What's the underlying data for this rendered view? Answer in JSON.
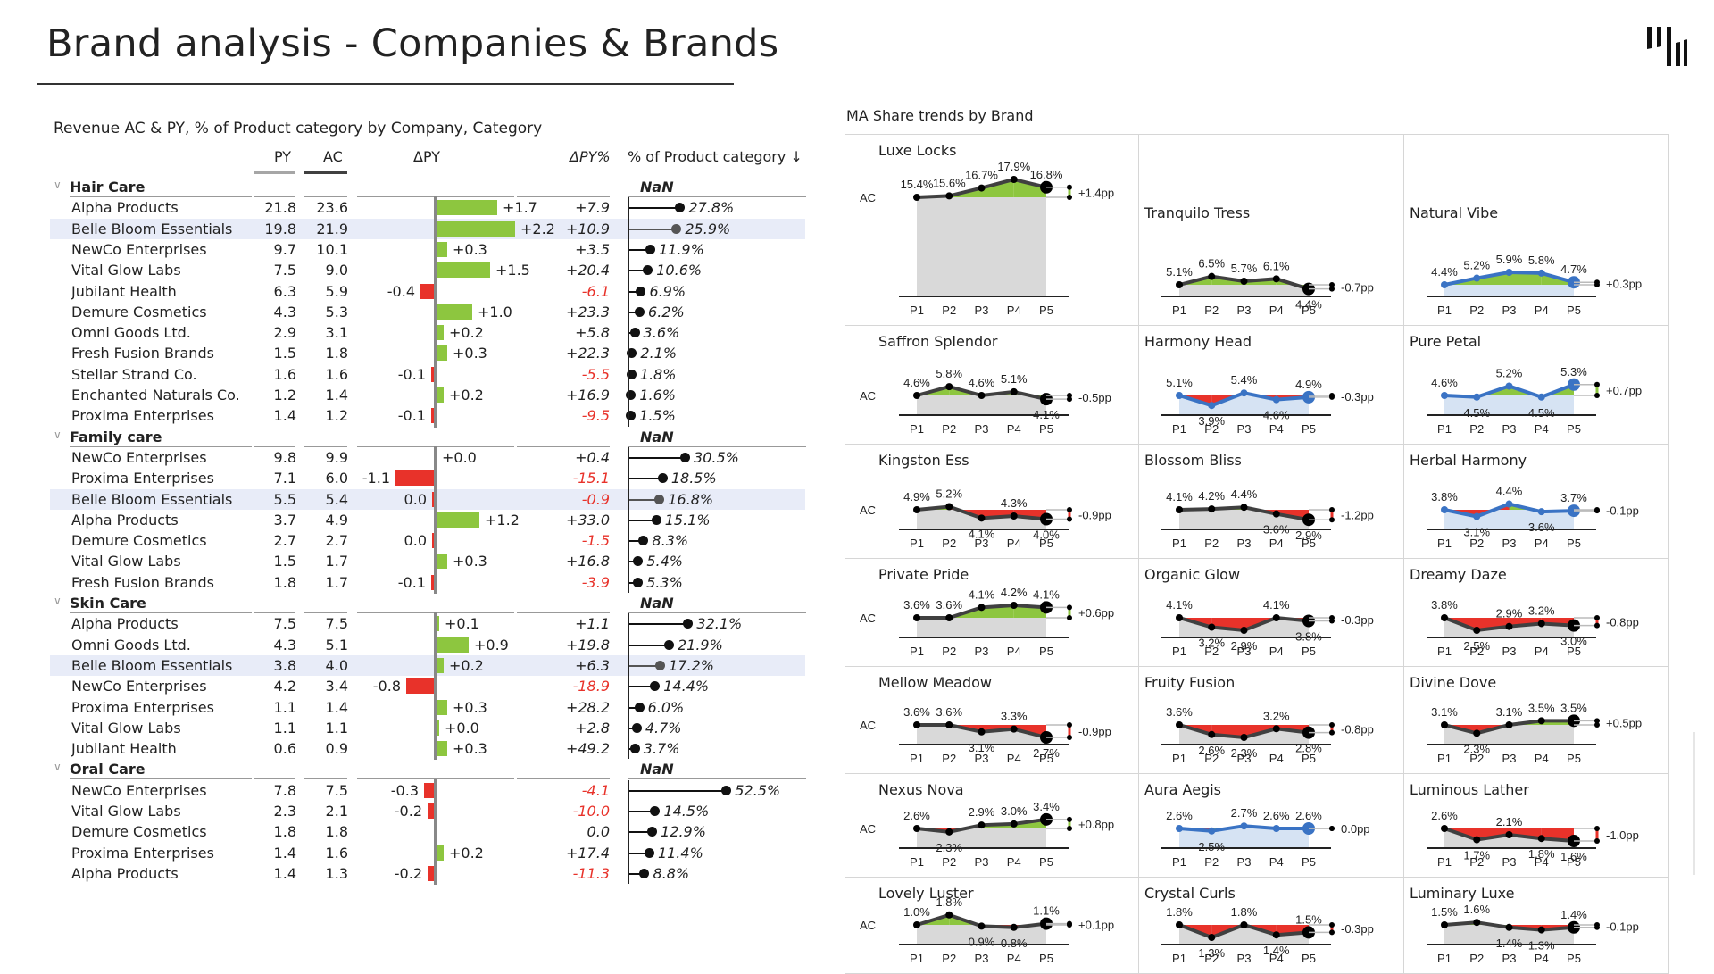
{
  "page": {
    "title": "Brand analysis - Companies & Brands",
    "logo_icon": "bars-logo-icon"
  },
  "table": {
    "subtitle": "Revenue AC & PY, % of Product category by Company, Category",
    "headers": {
      "py": "PY",
      "ac": "AC",
      "dpy": "ΔPY",
      "dpy_pct": "ΔPY%",
      "share": "% of Product category ↓"
    },
    "colors": {
      "positive": "#8dc63f",
      "negative": "#e8322a",
      "py_bar": "#a6a6a6",
      "ac_bar": "#404040",
      "highlight": "#e8ecf8"
    },
    "groups": [
      {
        "name": "Hair Care",
        "share_total": "NaN",
        "rows": [
          {
            "company": "Alpha Products",
            "py": "21.8",
            "ac": "23.6",
            "dpy": 1.7,
            "dpy_label": "+1.7",
            "dpy_pct": "+7.9",
            "share": 27.8,
            "share_label": "27.8%"
          },
          {
            "company": "Belle Bloom Essentials",
            "py": "19.8",
            "ac": "21.9",
            "dpy": 2.2,
            "dpy_label": "+2.2",
            "dpy_pct": "+10.9",
            "share": 25.9,
            "share_label": "25.9%",
            "highlight": true
          },
          {
            "company": "NewCo Enterprises",
            "py": "9.7",
            "ac": "10.1",
            "dpy": 0.3,
            "dpy_label": "+0.3",
            "dpy_pct": "+3.5",
            "share": 11.9,
            "share_label": "11.9%"
          },
          {
            "company": "Vital Glow Labs",
            "py": "7.5",
            "ac": "9.0",
            "dpy": 1.5,
            "dpy_label": "+1.5",
            "dpy_pct": "+20.4",
            "share": 10.6,
            "share_label": "10.6%"
          },
          {
            "company": "Jubilant Health",
            "py": "6.3",
            "ac": "5.9",
            "dpy": -0.4,
            "dpy_label": "-0.4",
            "dpy_pct": "-6.1",
            "share": 6.9,
            "share_label": "6.9%"
          },
          {
            "company": "Demure Cosmetics",
            "py": "4.3",
            "ac": "5.3",
            "dpy": 1.0,
            "dpy_label": "+1.0",
            "dpy_pct": "+23.3",
            "share": 6.2,
            "share_label": "6.2%"
          },
          {
            "company": "Omni Goods Ltd.",
            "py": "2.9",
            "ac": "3.1",
            "dpy": 0.2,
            "dpy_label": "+0.2",
            "dpy_pct": "+5.8",
            "share": 3.6,
            "share_label": "3.6%"
          },
          {
            "company": "Fresh Fusion Brands",
            "py": "1.5",
            "ac": "1.8",
            "dpy": 0.3,
            "dpy_label": "+0.3",
            "dpy_pct": "+22.3",
            "share": 2.1,
            "share_label": "2.1%"
          },
          {
            "company": "Stellar Strand Co.",
            "py": "1.6",
            "ac": "1.6",
            "dpy": -0.1,
            "dpy_label": "-0.1",
            "dpy_pct": "-5.5",
            "share": 1.8,
            "share_label": "1.8%"
          },
          {
            "company": "Enchanted Naturals Co.",
            "py": "1.2",
            "ac": "1.4",
            "dpy": 0.2,
            "dpy_label": "+0.2",
            "dpy_pct": "+16.9",
            "share": 1.6,
            "share_label": "1.6%"
          },
          {
            "company": "Proxima Enterprises",
            "py": "1.4",
            "ac": "1.2",
            "dpy": -0.1,
            "dpy_label": "-0.1",
            "dpy_pct": "-9.5",
            "share": 1.5,
            "share_label": "1.5%"
          }
        ]
      },
      {
        "name": "Family care",
        "share_total": "NaN",
        "rows": [
          {
            "company": "NewCo Enterprises",
            "py": "9.8",
            "ac": "9.9",
            "dpy": 0.0,
            "dpy_label": "+0.0",
            "dpy_pct": "+0.4",
            "share": 30.5,
            "share_label": "30.5%"
          },
          {
            "company": "Proxima Enterprises",
            "py": "7.1",
            "ac": "6.0",
            "dpy": -1.1,
            "dpy_label": "-1.1",
            "dpy_pct": "-15.1",
            "share": 18.5,
            "share_label": "18.5%"
          },
          {
            "company": "Belle Bloom Essentials",
            "py": "5.5",
            "ac": "5.4",
            "dpy": -0.01,
            "dpy_label": "0.0",
            "dpy_pct": "-0.9",
            "share": 16.8,
            "share_label": "16.8%",
            "highlight": true
          },
          {
            "company": "Alpha Products",
            "py": "3.7",
            "ac": "4.9",
            "dpy": 1.2,
            "dpy_label": "+1.2",
            "dpy_pct": "+33.0",
            "share": 15.1,
            "share_label": "15.1%"
          },
          {
            "company": "Demure Cosmetics",
            "py": "2.7",
            "ac": "2.7",
            "dpy": -0.01,
            "dpy_label": "0.0",
            "dpy_pct": "-1.5",
            "share": 8.3,
            "share_label": "8.3%"
          },
          {
            "company": "Vital Glow Labs",
            "py": "1.5",
            "ac": "1.7",
            "dpy": 0.3,
            "dpy_label": "+0.3",
            "dpy_pct": "+16.8",
            "share": 5.4,
            "share_label": "5.4%"
          },
          {
            "company": "Fresh Fusion Brands",
            "py": "1.8",
            "ac": "1.7",
            "dpy": -0.1,
            "dpy_label": "-0.1",
            "dpy_pct": "-3.9",
            "share": 5.3,
            "share_label": "5.3%"
          }
        ]
      },
      {
        "name": "Skin Care",
        "share_total": "NaN",
        "rows": [
          {
            "company": "Alpha Products",
            "py": "7.5",
            "ac": "7.5",
            "dpy": 0.05,
            "dpy_label": "+0.1",
            "dpy_pct": "+1.1",
            "share": 32.1,
            "share_label": "32.1%"
          },
          {
            "company": "Omni Goods Ltd.",
            "py": "4.3",
            "ac": "5.1",
            "dpy": 0.9,
            "dpy_label": "+0.9",
            "dpy_pct": "+19.8",
            "share": 21.9,
            "share_label": "21.9%"
          },
          {
            "company": "Belle Bloom Essentials",
            "py": "3.8",
            "ac": "4.0",
            "dpy": 0.2,
            "dpy_label": "+0.2",
            "dpy_pct": "+6.3",
            "share": 17.2,
            "share_label": "17.2%",
            "highlight": true
          },
          {
            "company": "NewCo Enterprises",
            "py": "4.2",
            "ac": "3.4",
            "dpy": -0.8,
            "dpy_label": "-0.8",
            "dpy_pct": "-18.9",
            "share": 14.4,
            "share_label": "14.4%"
          },
          {
            "company": "Proxima Enterprises",
            "py": "1.1",
            "ac": "1.4",
            "dpy": 0.3,
            "dpy_label": "+0.3",
            "dpy_pct": "+28.2",
            "share": 6.0,
            "share_label": "6.0%"
          },
          {
            "company": "Vital Glow Labs",
            "py": "1.1",
            "ac": "1.1",
            "dpy": 0.02,
            "dpy_label": "+0.0",
            "dpy_pct": "+2.8",
            "share": 4.7,
            "share_label": "4.7%"
          },
          {
            "company": "Jubilant Health",
            "py": "0.6",
            "ac": "0.9",
            "dpy": 0.3,
            "dpy_label": "+0.3",
            "dpy_pct": "+49.2",
            "share": 3.7,
            "share_label": "3.7%"
          }
        ]
      },
      {
        "name": "Oral Care",
        "share_total": "NaN",
        "rows": [
          {
            "company": "NewCo Enterprises",
            "py": "7.8",
            "ac": "7.5",
            "dpy": -0.3,
            "dpy_label": "-0.3",
            "dpy_pct": "-4.1",
            "share": 52.5,
            "share_label": "52.5%"
          },
          {
            "company": "Vital Glow Labs",
            "py": "2.3",
            "ac": "2.1",
            "dpy": -0.2,
            "dpy_label": "-0.2",
            "dpy_pct": "-10.0",
            "share": 14.5,
            "share_label": "14.5%"
          },
          {
            "company": "Demure Cosmetics",
            "py": "1.8",
            "ac": "1.8",
            "dpy": 0.0,
            "dpy_label": "",
            "dpy_pct": "0.0",
            "share": 12.9,
            "share_label": "12.9%"
          },
          {
            "company": "Proxima Enterprises",
            "py": "1.4",
            "ac": "1.6",
            "dpy": 0.2,
            "dpy_label": "+0.2",
            "dpy_pct": "+17.4",
            "share": 11.4,
            "share_label": "11.4%"
          },
          {
            "company": "Alpha Products",
            "py": "1.4",
            "ac": "1.3",
            "dpy": -0.2,
            "dpy_label": "-0.2",
            "dpy_pct": "-11.3",
            "share": 8.8,
            "share_label": "8.8%"
          }
        ]
      }
    ]
  },
  "trends": {
    "title": "MA Share trends by Brand",
    "periods": [
      "P1",
      "P2",
      "P3",
      "P4",
      "P5"
    ],
    "ac_label": "AC",
    "colors": {
      "up": "#8dc63f",
      "down": "#e8322a",
      "line_dark": "#404040",
      "line_blue": "#3a73c4",
      "fill_grey": "#d9d9d9",
      "fill_blue": "#d6e3f3"
    },
    "brands": [
      {
        "name": "Luxe Locks",
        "values": [
          15.4,
          15.6,
          16.7,
          17.9,
          16.8
        ],
        "delta": "+1.4pp",
        "style": "dark",
        "ac": true
      },
      {
        "name": "Tranquilo Tress",
        "values": [
          5.1,
          6.5,
          5.7,
          6.1,
          4.4
        ],
        "delta": "-0.7pp",
        "style": "dark"
      },
      {
        "name": "Natural Vibe",
        "values": [
          4.4,
          5.2,
          5.9,
          5.8,
          4.7
        ],
        "delta": "+0.3pp",
        "style": "blue"
      },
      {
        "name": "Saffron Splendor",
        "values": [
          4.6,
          5.8,
          4.6,
          5.1,
          4.1
        ],
        "delta": "-0.5pp",
        "style": "dark",
        "ac": true
      },
      {
        "name": "Harmony Head",
        "values": [
          5.1,
          3.9,
          5.4,
          4.6,
          4.9
        ],
        "delta": "-0.3pp",
        "style": "blue"
      },
      {
        "name": "Pure Petal",
        "values": [
          4.6,
          4.5,
          5.2,
          4.5,
          5.3
        ],
        "delta": "+0.7pp",
        "style": "blue"
      },
      {
        "name": "Kingston Ess",
        "values": [
          4.9,
          5.2,
          4.1,
          4.3,
          4.0
        ],
        "delta": "-0.9pp",
        "style": "dark",
        "ac": true
      },
      {
        "name": "Blossom Bliss",
        "values": [
          4.1,
          4.2,
          4.4,
          3.6,
          2.9
        ],
        "delta": "-1.2pp",
        "style": "dark"
      },
      {
        "name": "Herbal Harmony",
        "values": [
          3.8,
          3.1,
          4.4,
          3.6,
          3.7
        ],
        "delta": "-0.1pp",
        "style": "blue"
      },
      {
        "name": "Private Pride",
        "values": [
          3.6,
          3.6,
          4.1,
          4.2,
          4.1
        ],
        "delta": "+0.6pp",
        "style": "dark",
        "ac": true
      },
      {
        "name": "Organic Glow",
        "values": [
          4.1,
          3.2,
          2.9,
          4.1,
          3.8
        ],
        "delta": "-0.3pp",
        "style": "dark"
      },
      {
        "name": "Dreamy Daze",
        "values": [
          3.8,
          2.5,
          2.9,
          3.2,
          3.0
        ],
        "delta": "-0.8pp",
        "style": "dark"
      },
      {
        "name": "Mellow Meadow",
        "values": [
          3.6,
          3.6,
          3.1,
          3.3,
          2.7
        ],
        "delta": "-0.9pp",
        "style": "dark",
        "ac": true
      },
      {
        "name": "Fruity Fusion",
        "values": [
          3.6,
          2.6,
          2.3,
          3.2,
          2.8
        ],
        "delta": "-0.8pp",
        "style": "dark"
      },
      {
        "name": "Divine Dove",
        "values": [
          3.1,
          2.3,
          3.1,
          3.5,
          3.5
        ],
        "delta": "+0.5pp",
        "style": "dark"
      },
      {
        "name": "Nexus Nova",
        "values": [
          2.6,
          2.3,
          2.9,
          3.0,
          3.4
        ],
        "delta": "+0.8pp",
        "style": "dark",
        "ac": true
      },
      {
        "name": "Aura Aegis",
        "values": [
          2.6,
          2.5,
          2.7,
          2.6,
          2.6
        ],
        "delta": "0.0pp",
        "style": "blue"
      },
      {
        "name": "Luminous Lather",
        "values": [
          2.6,
          1.7,
          2.1,
          1.8,
          1.6
        ],
        "delta": "-1.0pp",
        "style": "dark"
      },
      {
        "name": "Lovely Luster",
        "values": [
          1.0,
          1.8,
          0.9,
          0.8,
          1.1
        ],
        "delta": "+0.1pp",
        "style": "dark",
        "ac": true
      },
      {
        "name": "Crystal Curls",
        "values": [
          1.8,
          1.3,
          1.8,
          1.4,
          1.5
        ],
        "delta": "-0.3pp",
        "style": "dark"
      },
      {
        "name": "Luminary Luxe",
        "values": [
          1.5,
          1.6,
          1.4,
          1.3,
          1.4
        ],
        "delta": "-0.1pp",
        "style": "dark"
      }
    ]
  }
}
